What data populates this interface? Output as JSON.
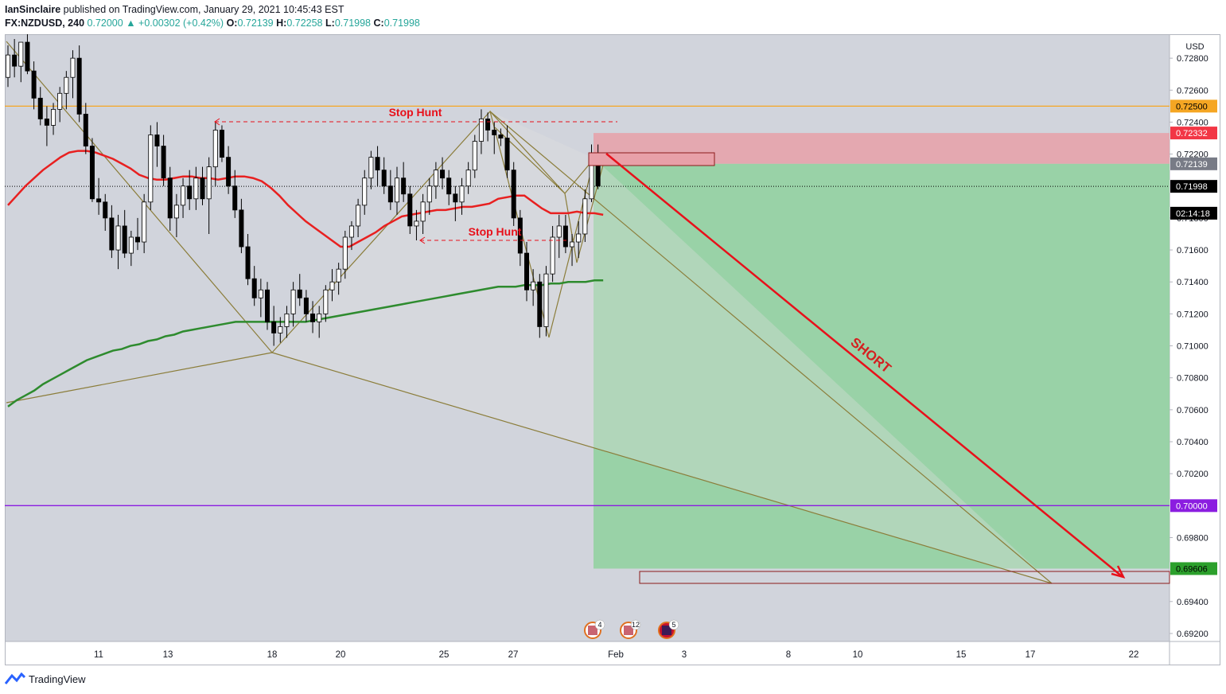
{
  "header": {
    "author": "IanSinclaire",
    "published": "published on TradingView.com, January 29, 2021 10:45:43 EST",
    "symbol": "FX:NZDUSD, 240",
    "last": "0.72000",
    "change": "+0.00302 (+0.42%)",
    "open_label": "O:",
    "open": "0.72139",
    "high_label": "H:",
    "high": "0.72258",
    "low_label": "L:",
    "low": "0.71998",
    "close_label": "C:",
    "close": "0.71998"
  },
  "footer": {
    "brand": "TradingView"
  },
  "colors": {
    "background": "#d1d4dc",
    "bull": "#ffffff",
    "bear": "#000000",
    "ema_fast": "#e82020",
    "ema_slow": "#2e8b2e",
    "pattern": "#8b7d3a",
    "stop_zone": "#e8a0a8",
    "target_zone": "#8fd19e",
    "arrow": "#e8101a",
    "resistance": "#f5a623",
    "level_700": "#8b1de0"
  },
  "chart_data": {
    "type": "candlestick",
    "currency": "USD",
    "ylim": [
      0.6915,
      0.7295
    ],
    "y_ticks": [
      "0.72800",
      "0.72600",
      "0.72400",
      "0.72200",
      "0.71800",
      "0.71600",
      "0.71400",
      "0.71200",
      "0.71000",
      "0.70800",
      "0.70600",
      "0.70400",
      "0.70200",
      "0.69800",
      "0.69400",
      "0.69200"
    ],
    "x_ticks": [
      "11",
      "13",
      "18",
      "20",
      "25",
      "27",
      "Feb",
      "3",
      "8",
      "10",
      "15",
      "17",
      "22"
    ],
    "price_labels": [
      {
        "value": "0.72500",
        "price": 0.725,
        "color": "#f5a623",
        "text_color": "#000000"
      },
      {
        "value": "0.72332",
        "price": 0.72332,
        "color": "#f23645",
        "text_color": "#ffffff"
      },
      {
        "value": "0.72139",
        "price": 0.72139,
        "color": "#787b86",
        "text_color": "#ffffff"
      },
      {
        "value": "0.71998",
        "price": 0.71998,
        "color": "#000000",
        "text_color": "#ffffff"
      },
      {
        "value": "02:14:18",
        "price": 0.7183,
        "color": "#000000",
        "text_color": "#ffffff"
      },
      {
        "value": "0.70000",
        "price": 0.7,
        "color": "#8b1de0",
        "text_color": "#ffffff"
      },
      {
        "value": "0.69606",
        "price": 0.69606,
        "color": "#2ca02c",
        "text_color": "#000000"
      }
    ],
    "horizontal_lines": [
      {
        "price": 0.725,
        "color": "#f5a623",
        "style": "solid"
      },
      {
        "price": 0.7,
        "color": "#8b1de0",
        "style": "solid"
      },
      {
        "price": 0.71998,
        "color": "#000000",
        "style": "dotted"
      }
    ],
    "annotations": [
      {
        "text": "Stop Hunt",
        "price": 0.7246
      },
      {
        "text": "Stop Hunt",
        "price": 0.7173
      },
      {
        "text": "SHORT"
      }
    ],
    "trade": {
      "direction": "short",
      "entry": 0.72139,
      "stop": 0.72332,
      "target": 0.69606
    },
    "events": [
      {
        "count": "4",
        "flag": "US"
      },
      {
        "count": "12",
        "flag": "US"
      },
      {
        "count": "5",
        "flag": "NZ"
      }
    ],
    "candles": [
      [
        0.7268,
        0.7288,
        0.7262,
        0.7282
      ],
      [
        0.7282,
        0.7292,
        0.7268,
        0.7275
      ],
      [
        0.7275,
        0.7288,
        0.7265,
        0.729
      ],
      [
        0.729,
        0.7295,
        0.727,
        0.7272
      ],
      [
        0.7272,
        0.7278,
        0.7248,
        0.7255
      ],
      [
        0.7255,
        0.7262,
        0.7238,
        0.7242
      ],
      [
        0.7242,
        0.725,
        0.7225,
        0.7238
      ],
      [
        0.7238,
        0.7252,
        0.7232,
        0.7248
      ],
      [
        0.7248,
        0.7262,
        0.724,
        0.7258
      ],
      [
        0.7258,
        0.7272,
        0.7248,
        0.7268
      ],
      [
        0.7268,
        0.7285,
        0.7255,
        0.728
      ],
      [
        0.728,
        0.7288,
        0.724,
        0.7245
      ],
      [
        0.7245,
        0.7252,
        0.722,
        0.7225
      ],
      [
        0.7225,
        0.723,
        0.719,
        0.7192
      ],
      [
        0.7192,
        0.7205,
        0.7182,
        0.719
      ],
      [
        0.719,
        0.7195,
        0.7172,
        0.718
      ],
      [
        0.718,
        0.7188,
        0.7155,
        0.716
      ],
      [
        0.716,
        0.7182,
        0.7148,
        0.7175
      ],
      [
        0.7175,
        0.7185,
        0.7155,
        0.7158
      ],
      [
        0.7158,
        0.7172,
        0.715,
        0.7168
      ],
      [
        0.7168,
        0.718,
        0.716,
        0.7165
      ],
      [
        0.7165,
        0.7195,
        0.7158,
        0.719
      ],
      [
        0.719,
        0.7238,
        0.7185,
        0.7232
      ],
      [
        0.7232,
        0.724,
        0.7212,
        0.7225
      ],
      [
        0.7225,
        0.7232,
        0.72,
        0.7205
      ],
      [
        0.7205,
        0.7212,
        0.7172,
        0.718
      ],
      [
        0.718,
        0.7195,
        0.7168,
        0.7188
      ],
      [
        0.7188,
        0.7205,
        0.718,
        0.72
      ],
      [
        0.72,
        0.721,
        0.7185,
        0.7192
      ],
      [
        0.7192,
        0.7212,
        0.7185,
        0.7205
      ],
      [
        0.7205,
        0.7212,
        0.7188,
        0.7192
      ],
      [
        0.7192,
        0.7218,
        0.717,
        0.7212
      ],
      [
        0.7212,
        0.724,
        0.72,
        0.7235
      ],
      [
        0.7235,
        0.7238,
        0.7215,
        0.7218
      ],
      [
        0.7218,
        0.7225,
        0.7195,
        0.72
      ],
      [
        0.72,
        0.721,
        0.718,
        0.7185
      ],
      [
        0.7185,
        0.7192,
        0.7158,
        0.7162
      ],
      [
        0.7162,
        0.717,
        0.7138,
        0.7142
      ],
      [
        0.7142,
        0.715,
        0.7125,
        0.713
      ],
      [
        0.713,
        0.7142,
        0.7118,
        0.7135
      ],
      [
        0.7135,
        0.714,
        0.711,
        0.7115
      ],
      [
        0.7115,
        0.7125,
        0.71,
        0.7108
      ],
      [
        0.7108,
        0.7118,
        0.7102,
        0.7112
      ],
      [
        0.7112,
        0.7125,
        0.7105,
        0.712
      ],
      [
        0.712,
        0.714,
        0.7112,
        0.7135
      ],
      [
        0.7135,
        0.7145,
        0.7125,
        0.713
      ],
      [
        0.713,
        0.7135,
        0.7115,
        0.712
      ],
      [
        0.712,
        0.7128,
        0.7108,
        0.7115
      ],
      [
        0.7115,
        0.7125,
        0.7105,
        0.712
      ],
      [
        0.712,
        0.7138,
        0.7115,
        0.7135
      ],
      [
        0.7135,
        0.7148,
        0.7128,
        0.714
      ],
      [
        0.714,
        0.7152,
        0.7132,
        0.7148
      ],
      [
        0.7148,
        0.7172,
        0.7142,
        0.7168
      ],
      [
        0.7168,
        0.7178,
        0.716,
        0.7175
      ],
      [
        0.7175,
        0.7192,
        0.7168,
        0.7188
      ],
      [
        0.7188,
        0.721,
        0.7182,
        0.7205
      ],
      [
        0.7205,
        0.7222,
        0.7198,
        0.7218
      ],
      [
        0.7218,
        0.7225,
        0.72,
        0.721
      ],
      [
        0.721,
        0.7218,
        0.7195,
        0.72
      ],
      [
        0.72,
        0.721,
        0.7185,
        0.719
      ],
      [
        0.719,
        0.7212,
        0.7182,
        0.7205
      ],
      [
        0.7205,
        0.7215,
        0.719,
        0.7195
      ],
      [
        0.7195,
        0.72,
        0.717,
        0.7175
      ],
      [
        0.7175,
        0.7185,
        0.7166,
        0.7178
      ],
      [
        0.7178,
        0.7195,
        0.717,
        0.719
      ],
      [
        0.719,
        0.7205,
        0.7182,
        0.72
      ],
      [
        0.72,
        0.7215,
        0.7192,
        0.721
      ],
      [
        0.721,
        0.7218,
        0.7198,
        0.7205
      ],
      [
        0.7205,
        0.721,
        0.7188,
        0.7195
      ],
      [
        0.7195,
        0.72,
        0.7178,
        0.719
      ],
      [
        0.719,
        0.7205,
        0.7182,
        0.72
      ],
      [
        0.72,
        0.7215,
        0.7195,
        0.721
      ],
      [
        0.721,
        0.7232,
        0.7205,
        0.7228
      ],
      [
        0.7228,
        0.7248,
        0.722,
        0.7242
      ],
      [
        0.7242,
        0.7246,
        0.7228,
        0.7235
      ],
      [
        0.7235,
        0.724,
        0.722,
        0.7232
      ],
      [
        0.7232,
        0.7236,
        0.7225,
        0.723
      ],
      [
        0.723,
        0.7238,
        0.7205,
        0.721
      ],
      [
        0.721,
        0.7215,
        0.7175,
        0.718
      ],
      [
        0.718,
        0.7185,
        0.715,
        0.7158
      ],
      [
        0.7158,
        0.7165,
        0.7128,
        0.7135
      ],
      [
        0.7135,
        0.7148,
        0.7125,
        0.714
      ],
      [
        0.714,
        0.7145,
        0.7105,
        0.7112
      ],
      [
        0.7112,
        0.715,
        0.7106,
        0.7145
      ],
      [
        0.7145,
        0.7175,
        0.714,
        0.7168
      ],
      [
        0.7168,
        0.7182,
        0.7155,
        0.7175
      ],
      [
        0.7175,
        0.7182,
        0.7158,
        0.7162
      ],
      [
        0.7162,
        0.717,
        0.715,
        0.7165
      ],
      [
        0.7165,
        0.7178,
        0.7155,
        0.717
      ],
      [
        0.717,
        0.7198,
        0.7165,
        0.7192
      ],
      [
        0.7192,
        0.7226,
        0.719,
        0.7214
      ],
      [
        0.7214,
        0.7226,
        0.7198,
        0.72
      ]
    ],
    "ema_fast": [
      0.7188,
      0.7194,
      0.72,
      0.7205,
      0.721,
      0.7214,
      0.7218,
      0.7221,
      0.7222,
      0.7222,
      0.7221,
      0.7219,
      0.7217,
      0.7214,
      0.7211,
      0.7207,
      0.7205,
      0.7204,
      0.7204,
      0.7205,
      0.7206,
      0.7206,
      0.7205,
      0.7205,
      0.7204,
      0.7205,
      0.7206,
      0.7206,
      0.7205,
      0.7203,
      0.7199,
      0.7194,
      0.7188,
      0.7183,
      0.7178,
      0.7174,
      0.717,
      0.7166,
      0.7162,
      0.7162,
      0.7165,
      0.7168,
      0.7171,
      0.7175,
      0.7178,
      0.7181,
      0.7182,
      0.7183,
      0.7184,
      0.7185,
      0.7185,
      0.7186,
      0.7187,
      0.7187,
      0.7188,
      0.7189,
      0.7192,
      0.7193,
      0.7194,
      0.7194,
      0.719,
      0.7186,
      0.7183,
      0.7183,
      0.7183,
      0.7184,
      0.7183,
      0.7183,
      0.7182
    ],
    "ema_slow": [
      0.7062,
      0.7066,
      0.7069,
      0.7072,
      0.7076,
      0.7079,
      0.7082,
      0.7085,
      0.7088,
      0.7091,
      0.7093,
      0.7095,
      0.7097,
      0.7098,
      0.71,
      0.7101,
      0.7103,
      0.7104,
      0.7106,
      0.7107,
      0.7109,
      0.711,
      0.7111,
      0.7112,
      0.7113,
      0.7114,
      0.7115,
      0.7115,
      0.7115,
      0.7115,
      0.7115,
      0.7115,
      0.7115,
      0.7115,
      0.7115,
      0.7116,
      0.7117,
      0.7118,
      0.7119,
      0.712,
      0.7121,
      0.7122,
      0.7123,
      0.7124,
      0.7125,
      0.7126,
      0.7127,
      0.7128,
      0.7129,
      0.713,
      0.7131,
      0.7132,
      0.7133,
      0.7134,
      0.7135,
      0.7136,
      0.7137,
      0.7137,
      0.7137,
      0.7138,
      0.7138,
      0.7138,
      0.7139,
      0.7139,
      0.714,
      0.714,
      0.714,
      0.7141,
      0.7141
    ]
  }
}
